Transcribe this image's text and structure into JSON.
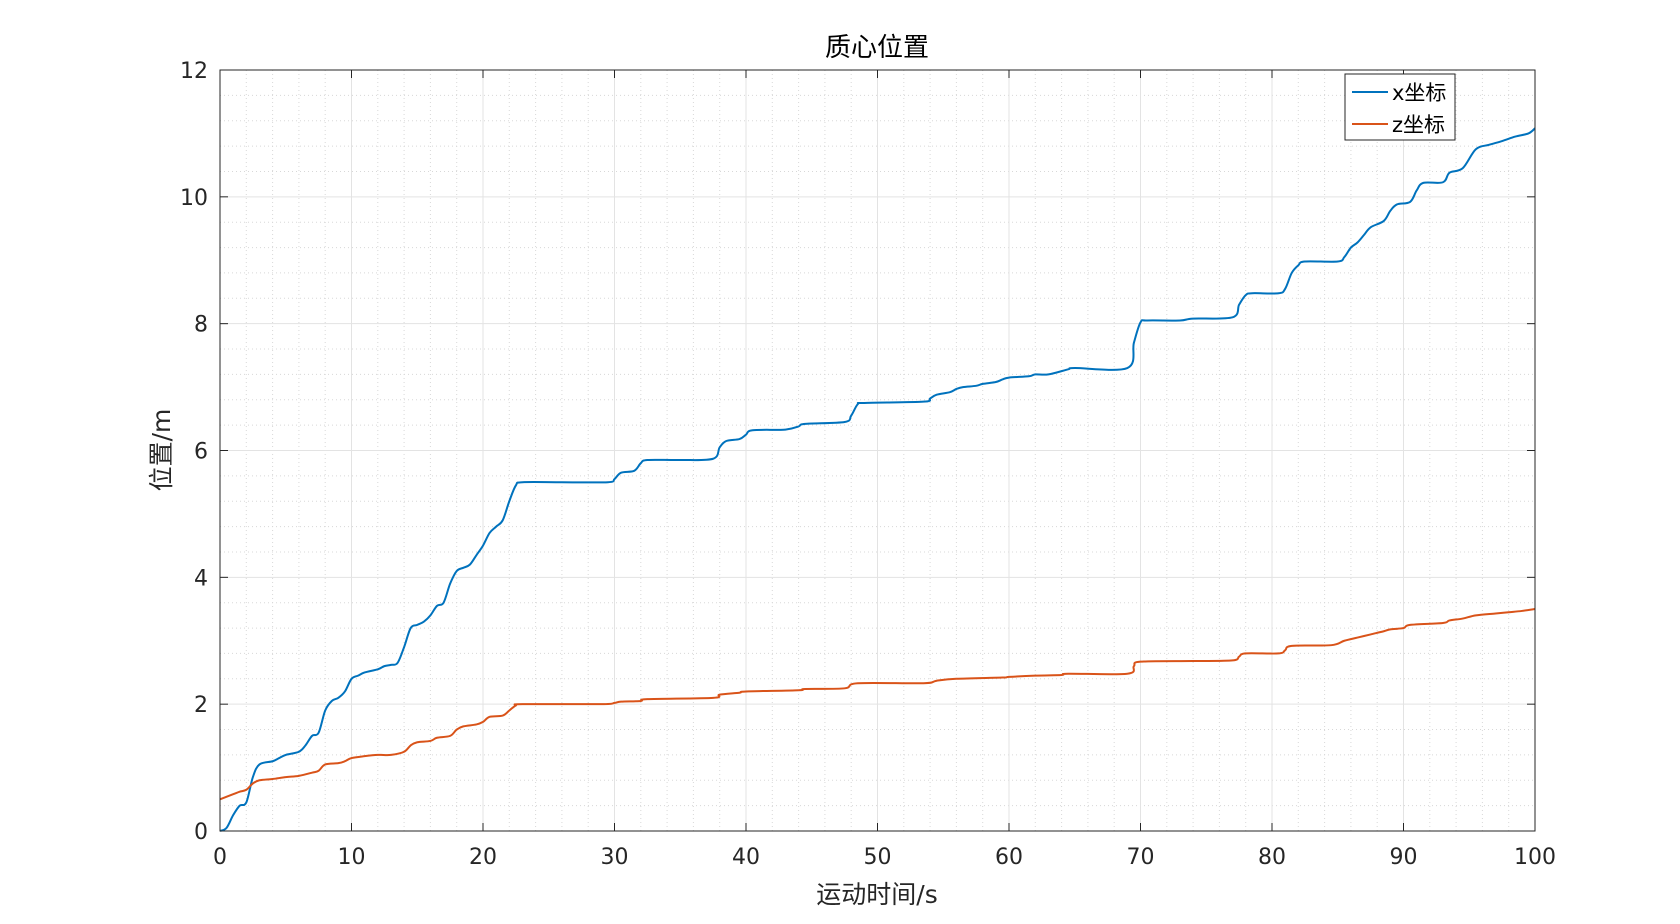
{
  "chart_data": {
    "type": "line",
    "title": "质心位置",
    "xlabel": "运动时间/s",
    "ylabel": "位置/m",
    "xlim": [
      0,
      100
    ],
    "ylim": [
      0,
      12
    ],
    "xticks": [
      "0",
      "10",
      "20",
      "30",
      "40",
      "50",
      "60",
      "70",
      "80",
      "90",
      "100"
    ],
    "yticks": [
      "0",
      "2",
      "4",
      "6",
      "8",
      "10",
      "12"
    ],
    "grid": true,
    "minor_grid": true,
    "legend_position": "top-right",
    "series": [
      {
        "name": "x坐标",
        "color": "#0072BD",
        "points": [
          [
            0,
            0
          ],
          [
            0.5,
            0.05
          ],
          [
            1,
            0.25
          ],
          [
            1.5,
            0.4
          ],
          [
            2,
            0.45
          ],
          [
            2.5,
            0.85
          ],
          [
            3,
            1.05
          ],
          [
            4,
            1.1
          ],
          [
            4.5,
            1.15
          ],
          [
            5,
            1.2
          ],
          [
            6,
            1.25
          ],
          [
            6.5,
            1.35
          ],
          [
            7,
            1.5
          ],
          [
            7.5,
            1.55
          ],
          [
            8,
            1.9
          ],
          [
            8.5,
            2.05
          ],
          [
            9,
            2.1
          ],
          [
            9.5,
            2.2
          ],
          [
            10,
            2.4
          ],
          [
            10.5,
            2.45
          ],
          [
            11,
            2.5
          ],
          [
            12,
            2.55
          ],
          [
            12.5,
            2.6
          ],
          [
            13,
            2.62
          ],
          [
            13.5,
            2.65
          ],
          [
            14,
            2.9
          ],
          [
            14.5,
            3.2
          ],
          [
            15,
            3.25
          ],
          [
            15.5,
            3.3
          ],
          [
            16,
            3.4
          ],
          [
            16.5,
            3.55
          ],
          [
            17,
            3.6
          ],
          [
            17.5,
            3.9
          ],
          [
            18,
            4.1
          ],
          [
            18.5,
            4.15
          ],
          [
            19,
            4.2
          ],
          [
            19.5,
            4.35
          ],
          [
            20,
            4.5
          ],
          [
            20.5,
            4.7
          ],
          [
            21,
            4.8
          ],
          [
            21.5,
            4.9
          ],
          [
            22,
            5.2
          ],
          [
            22.5,
            5.45
          ],
          [
            23,
            5.5
          ],
          [
            26,
            5.5
          ],
          [
            29.5,
            5.5
          ],
          [
            30,
            5.55
          ],
          [
            30.5,
            5.65
          ],
          [
            31.5,
            5.68
          ],
          [
            32,
            5.8
          ],
          [
            32.5,
            5.85
          ],
          [
            35,
            5.85
          ],
          [
            37.5,
            5.87
          ],
          [
            38,
            6.05
          ],
          [
            38.5,
            6.15
          ],
          [
            39.5,
            6.18
          ],
          [
            40,
            6.25
          ],
          [
            40.5,
            6.32
          ],
          [
            43,
            6.33
          ],
          [
            44,
            6.38
          ],
          [
            44.5,
            6.42
          ],
          [
            47.5,
            6.45
          ],
          [
            48,
            6.55
          ],
          [
            48.5,
            6.73
          ],
          [
            49,
            6.75
          ],
          [
            53.5,
            6.77
          ],
          [
            54,
            6.82
          ],
          [
            54.5,
            6.88
          ],
          [
            55.5,
            6.92
          ],
          [
            56,
            6.97
          ],
          [
            56.5,
            7.0
          ],
          [
            57.5,
            7.02
          ],
          [
            58,
            7.05
          ],
          [
            59,
            7.08
          ],
          [
            59.5,
            7.12
          ],
          [
            60,
            7.15
          ],
          [
            61.5,
            7.17
          ],
          [
            62,
            7.2
          ],
          [
            63,
            7.2
          ],
          [
            64.5,
            7.28
          ],
          [
            65,
            7.3
          ],
          [
            69,
            7.3
          ],
          [
            69.5,
            7.7
          ],
          [
            70,
            8.02
          ],
          [
            70.5,
            8.05
          ],
          [
            73,
            8.05
          ],
          [
            74,
            8.08
          ],
          [
            77,
            8.1
          ],
          [
            77.5,
            8.3
          ],
          [
            78,
            8.45
          ],
          [
            78.5,
            8.48
          ],
          [
            80.5,
            8.48
          ],
          [
            81,
            8.55
          ],
          [
            81.5,
            8.8
          ],
          [
            82,
            8.92
          ],
          [
            82.5,
            8.98
          ],
          [
            85,
            8.98
          ],
          [
            85.5,
            9.05
          ],
          [
            86,
            9.2
          ],
          [
            86.5,
            9.28
          ],
          [
            87,
            9.4
          ],
          [
            87.5,
            9.52
          ],
          [
            88.5,
            9.62
          ],
          [
            89,
            9.78
          ],
          [
            89.5,
            9.88
          ],
          [
            90.5,
            9.92
          ],
          [
            91,
            10.1
          ],
          [
            91.5,
            10.22
          ],
          [
            93,
            10.23
          ],
          [
            93.5,
            10.38
          ],
          [
            94.5,
            10.45
          ],
          [
            95.5,
            10.75
          ],
          [
            96.5,
            10.82
          ],
          [
            97.5,
            10.88
          ],
          [
            98.5,
            10.95
          ],
          [
            99.5,
            11.0
          ],
          [
            100,
            11.08
          ]
        ]
      },
      {
        "name": "z坐标",
        "color": "#D95319",
        "points": [
          [
            0,
            0.5
          ],
          [
            1,
            0.58
          ],
          [
            1.5,
            0.62
          ],
          [
            2,
            0.65
          ],
          [
            2.5,
            0.75
          ],
          [
            3,
            0.8
          ],
          [
            4,
            0.82
          ],
          [
            5,
            0.85
          ],
          [
            6,
            0.87
          ],
          [
            7,
            0.92
          ],
          [
            7.5,
            0.95
          ],
          [
            8,
            1.05
          ],
          [
            9,
            1.07
          ],
          [
            9.5,
            1.1
          ],
          [
            10,
            1.15
          ],
          [
            11,
            1.18
          ],
          [
            12,
            1.2
          ],
          [
            13,
            1.2
          ],
          [
            14,
            1.25
          ],
          [
            14.5,
            1.35
          ],
          [
            15,
            1.4
          ],
          [
            16,
            1.42
          ],
          [
            16.5,
            1.47
          ],
          [
            17.5,
            1.5
          ],
          [
            18,
            1.6
          ],
          [
            18.5,
            1.65
          ],
          [
            19.5,
            1.68
          ],
          [
            20,
            1.72
          ],
          [
            20.5,
            1.8
          ],
          [
            21.5,
            1.82
          ],
          [
            22,
            1.9
          ],
          [
            22.5,
            1.98
          ],
          [
            23,
            2.0
          ],
          [
            29,
            2.0
          ],
          [
            30,
            2.02
          ],
          [
            30.5,
            2.04
          ],
          [
            32,
            2.05
          ],
          [
            32.5,
            2.08
          ],
          [
            37.5,
            2.1
          ],
          [
            38,
            2.15
          ],
          [
            39.5,
            2.18
          ],
          [
            40,
            2.2
          ],
          [
            44,
            2.22
          ],
          [
            44.5,
            2.24
          ],
          [
            47.5,
            2.25
          ],
          [
            48.5,
            2.33
          ],
          [
            53.5,
            2.33
          ],
          [
            54.5,
            2.37
          ],
          [
            56,
            2.4
          ],
          [
            59.5,
            2.42
          ],
          [
            60,
            2.43
          ],
          [
            62,
            2.45
          ],
          [
            64,
            2.46
          ],
          [
            64.5,
            2.48
          ],
          [
            69,
            2.48
          ],
          [
            69.5,
            2.6
          ],
          [
            70,
            2.67
          ],
          [
            74,
            2.68
          ],
          [
            77,
            2.69
          ],
          [
            77.5,
            2.75
          ],
          [
            78,
            2.8
          ],
          [
            80.5,
            2.8
          ],
          [
            81,
            2.85
          ],
          [
            81.5,
            2.92
          ],
          [
            84.5,
            2.93
          ],
          [
            85.5,
            3.0
          ],
          [
            86.5,
            3.05
          ],
          [
            87.5,
            3.1
          ],
          [
            88.5,
            3.15
          ],
          [
            89,
            3.18
          ],
          [
            90,
            3.2
          ],
          [
            90.5,
            3.25
          ],
          [
            93,
            3.28
          ],
          [
            93.5,
            3.32
          ],
          [
            94.5,
            3.35
          ],
          [
            95.5,
            3.4
          ],
          [
            97,
            3.43
          ],
          [
            98,
            3.45
          ],
          [
            99,
            3.47
          ],
          [
            100,
            3.5
          ]
        ]
      }
    ]
  }
}
